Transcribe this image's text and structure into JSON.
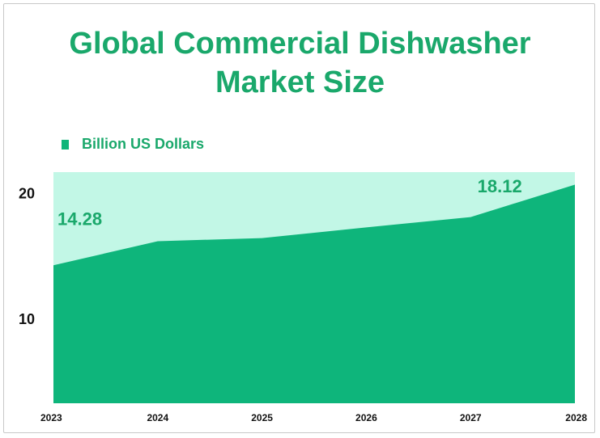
{
  "chart_data": {
    "type": "area",
    "title_lines": [
      "Global Commercial Dishwasher",
      "Market Size"
    ],
    "legend": {
      "label": "Billion US Dollars",
      "placement": "top-left"
    },
    "x": [
      "2023",
      "2024",
      "2025",
      "2026",
      "2027",
      "2028"
    ],
    "series": [
      {
        "name": "Billion US Dollars",
        "values": [
          14.28,
          16.2,
          16.45,
          17.3,
          18.12,
          20.7
        ]
      }
    ],
    "yticks": [
      10,
      20
    ],
    "ylim": [
      3.3,
      21.7
    ],
    "data_labels": [
      {
        "index": 0,
        "text": "14.28"
      },
      {
        "index": 4,
        "text": "18.12"
      }
    ],
    "grid": false,
    "colors": {
      "fill": "#0eb57b",
      "background": "#c2f7e6",
      "text": "#1aa86b"
    }
  }
}
